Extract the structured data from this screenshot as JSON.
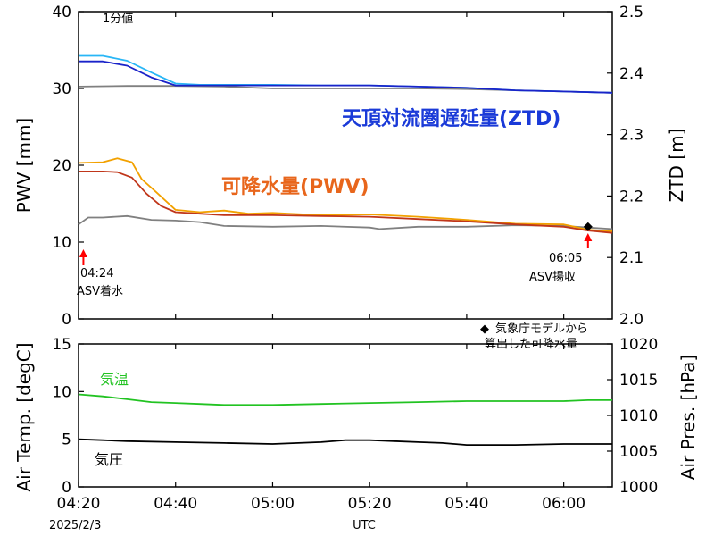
{
  "colors": {
    "ztd_cyan": "#29b6f6",
    "ztd_blue": "#1a23c9",
    "pwv_orange": "#f2a100",
    "pwv_red": "#c0361a",
    "gray": "#808080",
    "temp_green": "#22c322",
    "pres_black": "#000000",
    "arrow_red": "#ff0000",
    "ztd_label": "#1a3ad8",
    "pwv_label": "#e8661c"
  },
  "chart_data": [
    {
      "type": "line",
      "panel": "top",
      "ylabel": "PWV [mm]",
      "y2label": "ZTD [m]",
      "ylim": [
        0,
        40
      ],
      "y2lim": [
        2.0,
        2.5
      ],
      "xlim_minutes": [
        0,
        110
      ],
      "yticks": [
        "0",
        "10",
        "20",
        "30",
        "40"
      ],
      "y2ticks": [
        "2.0",
        "2.1",
        "2.2",
        "2.3",
        "2.4",
        "2.5"
      ],
      "sampling_label": "1分値",
      "ztd_label": "天頂対流圏遅延量(ZTD)",
      "pwv_label": "可降水量(PWV)",
      "series": [
        {
          "color_key": "gray",
          "axis": "y2",
          "x": [
            0,
            10,
            20,
            30,
            40,
            50,
            60,
            70,
            80,
            90,
            100,
            110
          ],
          "y": [
            2.378,
            2.379,
            2.379,
            2.378,
            2.375,
            2.375,
            2.375,
            2.375,
            2.374,
            2.372,
            2.37,
            2.368
          ]
        },
        {
          "color_key": "ztd_cyan",
          "axis": "y2",
          "x": [
            0,
            5,
            10,
            15,
            20,
            25,
            30,
            40,
            50,
            60,
            70,
            80,
            90,
            100,
            110
          ],
          "y": [
            2.428,
            2.428,
            2.42,
            2.401,
            2.383,
            2.381,
            2.381,
            2.381,
            2.38,
            2.38,
            2.378,
            2.376,
            2.372,
            2.37,
            2.368
          ]
        },
        {
          "color_key": "ztd_blue",
          "axis": "y2",
          "x": [
            0,
            5,
            10,
            15,
            20,
            25,
            30,
            40,
            50,
            60,
            70,
            80,
            90,
            100,
            110
          ],
          "y": [
            2.419,
            2.419,
            2.412,
            2.393,
            2.38,
            2.38,
            2.38,
            2.38,
            2.38,
            2.38,
            2.378,
            2.376,
            2.372,
            2.37,
            2.368
          ]
        },
        {
          "color_key": "gray",
          "axis": "y",
          "x": [
            0,
            2,
            5,
            10,
            15,
            20,
            25,
            30,
            40,
            50,
            60,
            62,
            70,
            80,
            90,
            100,
            105,
            110
          ],
          "y": [
            12.3,
            13.2,
            13.2,
            13.4,
            12.9,
            12.8,
            12.6,
            12.1,
            12.0,
            12.1,
            11.9,
            11.7,
            12.0,
            12.0,
            12.2,
            12.1,
            11.9,
            11.7
          ]
        },
        {
          "color_key": "pwv_orange",
          "axis": "y",
          "x": [
            0,
            5,
            8,
            11,
            13,
            16,
            20,
            25,
            30,
            35,
            40,
            50,
            60,
            70,
            80,
            90,
            100,
            105,
            110
          ],
          "y": [
            20.3,
            20.4,
            20.9,
            20.4,
            18.2,
            16.5,
            14.2,
            13.9,
            14.1,
            13.7,
            13.8,
            13.5,
            13.6,
            13.3,
            12.9,
            12.4,
            12.3,
            11.6,
            11.4
          ]
        },
        {
          "color_key": "pwv_red",
          "axis": "y",
          "x": [
            0,
            5,
            8,
            11,
            14,
            17,
            20,
            25,
            30,
            40,
            50,
            60,
            70,
            80,
            90,
            100,
            105,
            110
          ],
          "y": [
            19.2,
            19.2,
            19.1,
            18.4,
            16.3,
            14.7,
            13.9,
            13.7,
            13.5,
            13.5,
            13.4,
            13.3,
            13.0,
            12.7,
            12.3,
            12.0,
            11.5,
            11.2
          ]
        }
      ],
      "jma_point": {
        "x": 105,
        "y": 12.0
      },
      "annotations": [
        {
          "text": "04:24",
          "x": 1
        },
        {
          "text": "ASV着水",
          "x": 1
        },
        {
          "text": "06:05",
          "x": 105
        },
        {
          "text": "ASV揚収",
          "x": 105
        }
      ],
      "legend": {
        "marker": "◆",
        "line1": "気象庁モデルから",
        "line2": "算出した可降水量",
        "placement": "bottom-right"
      }
    },
    {
      "type": "line",
      "panel": "bottom",
      "ylabel": "Air Temp. [degC]",
      "y2label": "Air Pres. [hPa]",
      "ylim": [
        0,
        15
      ],
      "y2lim": [
        1000,
        1020
      ],
      "yticks": [
        "0",
        "5",
        "10",
        "15"
      ],
      "y2ticks": [
        "1000",
        "1005",
        "1010",
        "1015",
        "1020"
      ],
      "xlabel": "UTC",
      "xticks": [
        "04:20",
        "04:40",
        "05:00",
        "05:20",
        "05:40",
        "06:00"
      ],
      "xtick_minutes": [
        0,
        20,
        40,
        60,
        80,
        100
      ],
      "date_label": "2025/2/3",
      "temp_label": "気温",
      "pres_label": "気圧",
      "series": [
        {
          "color_key": "temp_green",
          "axis": "y",
          "x": [
            0,
            5,
            10,
            15,
            20,
            25,
            30,
            35,
            40,
            50,
            60,
            70,
            80,
            90,
            100,
            105,
            110
          ],
          "y": [
            9.7,
            9.5,
            9.2,
            8.9,
            8.8,
            8.7,
            8.6,
            8.6,
            8.6,
            8.7,
            8.8,
            8.9,
            9.0,
            9.0,
            9.0,
            9.1,
            9.1
          ]
        },
        {
          "color_key": "pres_black",
          "axis": "y",
          "x": [
            0,
            5,
            10,
            20,
            30,
            40,
            50,
            55,
            60,
            65,
            70,
            75,
            80,
            85,
            90,
            100,
            110
          ],
          "y": [
            5.0,
            4.9,
            4.8,
            4.7,
            4.6,
            4.5,
            4.7,
            4.9,
            4.9,
            4.8,
            4.7,
            4.6,
            4.4,
            4.4,
            4.4,
            4.5,
            4.5
          ]
        }
      ]
    }
  ]
}
